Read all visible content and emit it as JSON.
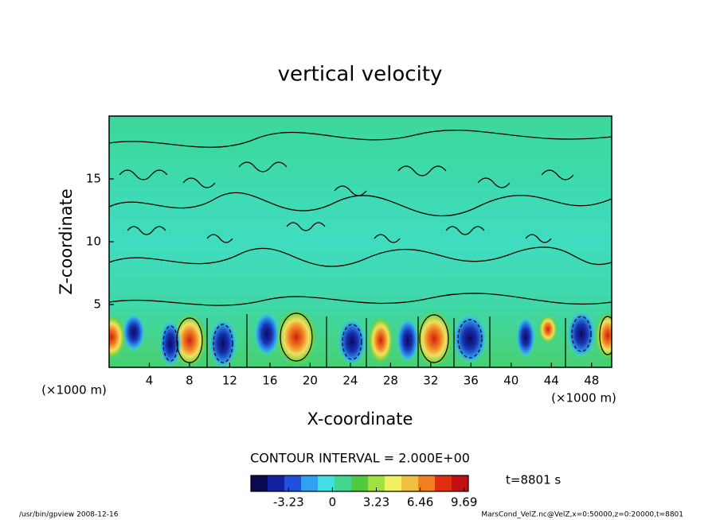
{
  "chart_data": {
    "type": "contour",
    "title": "vertical velocity",
    "x_label": "X-coordinate",
    "y_label": "Z-coordinate",
    "x_unit": "(×1000 m)",
    "y_unit": "(×1000 m)",
    "xlim": [
      0,
      50
    ],
    "xticks": [
      4,
      8,
      12,
      16,
      20,
      24,
      28,
      32,
      36,
      40,
      44,
      48
    ],
    "ylim": [
      0,
      20
    ],
    "yticks": [
      5,
      10,
      15
    ],
    "contour_interval": "CONTOUR INTERVAL = 2.000E+00",
    "colorbar": {
      "lim": [
        -6,
        10
      ],
      "ticks": [
        -3.23,
        0,
        3.23,
        6.46,
        9.69
      ],
      "colors": [
        "#0a0a50",
        "#1020a0",
        "#2050e0",
        "#30a0f0",
        "#40e0e0",
        "#40d890",
        "#50c840",
        "#a0e040",
        "#f0f060",
        "#f0c040",
        "#f08020",
        "#e03010",
        "#c01010"
      ]
    },
    "time_label": "t=8801 s",
    "footer_left": "/usr/bin/gpview  2008-12-16",
    "footer_right": "MarsCond_VelZ.nc@VelZ,x=0:50000,z=0:20000,t=8801"
  }
}
